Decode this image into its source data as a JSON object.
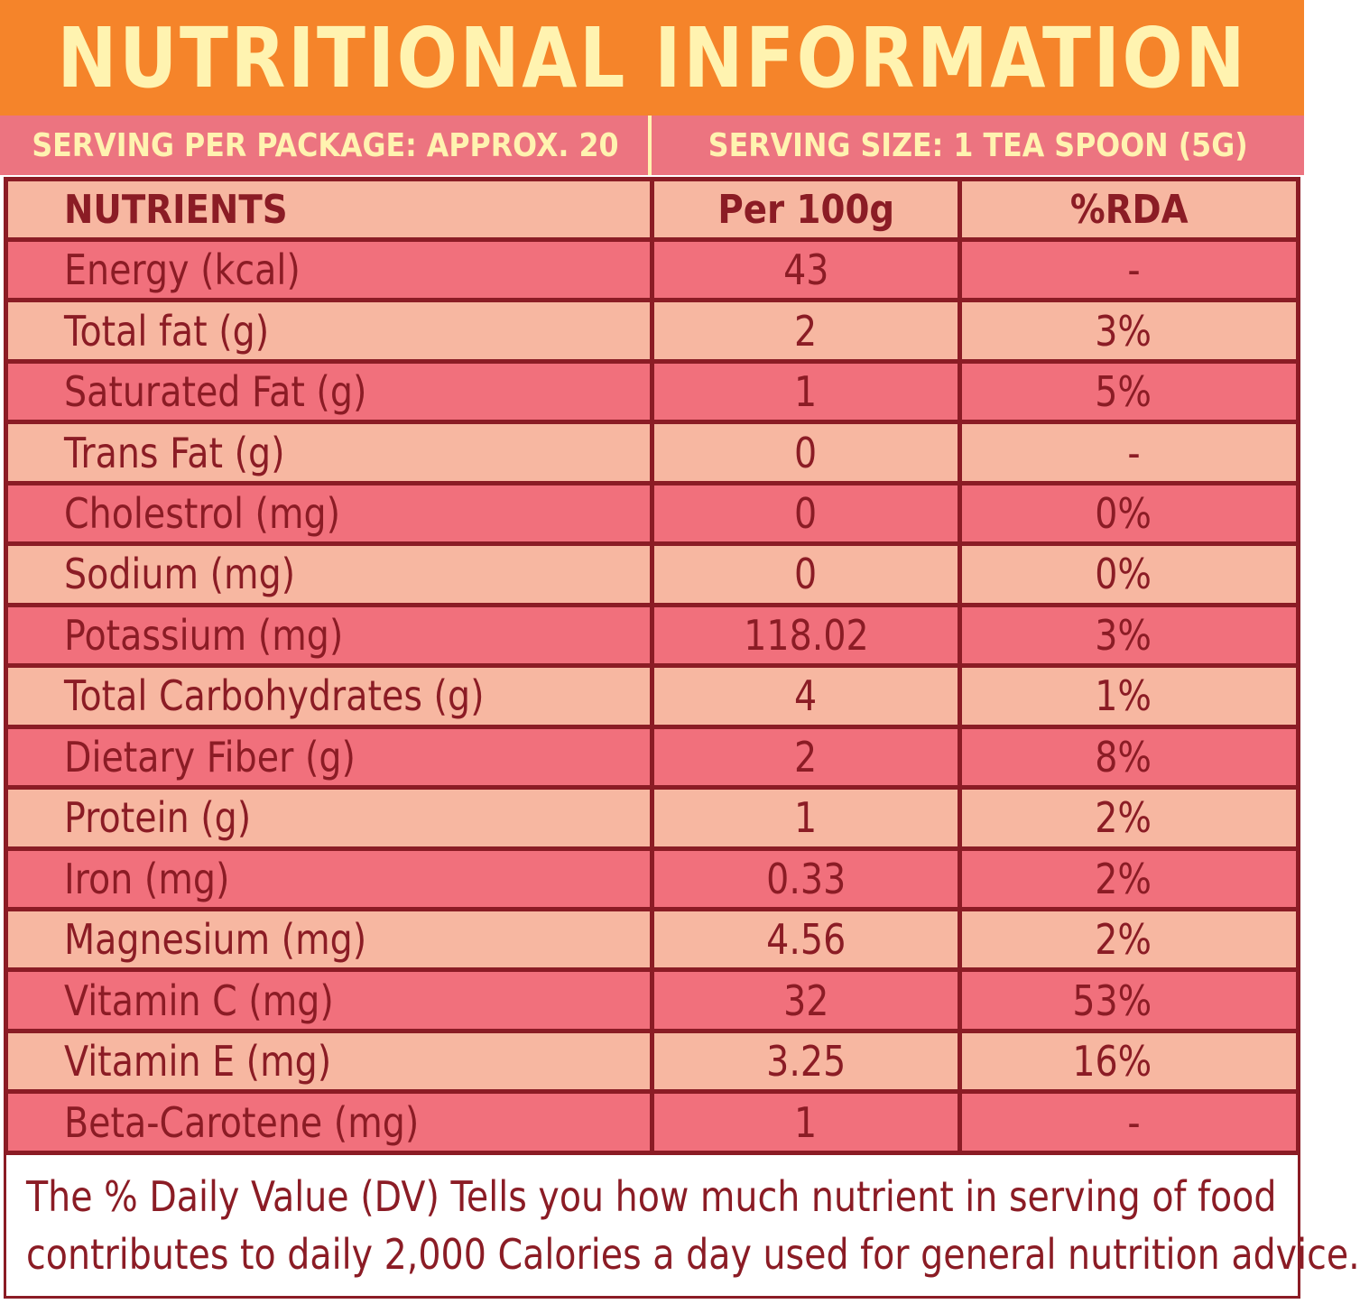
{
  "title": "NUTRITIONAL INFORMATION",
  "serving": {
    "per_package": "SERVING PER PACKAGE: APPROX. 20",
    "size": "SERVING SIZE: 1 TEA SPOON (5G)"
  },
  "table": {
    "headers": {
      "nutrient": "NUTRIENTS",
      "per100g": "Per 100g",
      "rda": "%RDA"
    },
    "rows": [
      {
        "nutrient": "Energy (kcal)",
        "per100g": "43",
        "rda": "-"
      },
      {
        "nutrient": "Total fat (g)",
        "per100g": "2",
        "rda": "3%"
      },
      {
        "nutrient": "Saturated Fat (g)",
        "per100g": "1",
        "rda": "5%"
      },
      {
        "nutrient": "Trans Fat (g)",
        "per100g": "0",
        "rda": "-"
      },
      {
        "nutrient": "Cholestrol (mg)",
        "per100g": "0",
        "rda": "0%"
      },
      {
        "nutrient": "Sodium (mg)",
        "per100g": "0",
        "rda": "0%"
      },
      {
        "nutrient": "Potassium  (mg)",
        "per100g": "118.02",
        "rda": "3%"
      },
      {
        "nutrient": "Total Carbohydrates (g)",
        "per100g": "4",
        "rda": "1%"
      },
      {
        "nutrient": "Dietary Fiber (g)",
        "per100g": "2",
        "rda": "8%"
      },
      {
        "nutrient": "Protein (g)",
        "per100g": "1",
        "rda": "2%"
      },
      {
        "nutrient": "Iron (mg)",
        "per100g": "0.33",
        "rda": "2%"
      },
      {
        "nutrient": "Magnesium (mg)",
        "per100g": "4.56",
        "rda": "2%"
      },
      {
        "nutrient": "Vitamin C (mg)",
        "per100g": "32",
        "rda": "53%"
      },
      {
        "nutrient": "Vitamin E (mg)",
        "per100g": "3.25",
        "rda": "16%"
      },
      {
        "nutrient": "Beta-Carotene (mg)",
        "per100g": "1",
        "rda": "-"
      }
    ]
  },
  "footnote": {
    "line1": "The % Daily Value (DV) Tells you how much nutrient in serving of food",
    "line2": "contributes to daily 2,000 Calories a day used for general nutrition advice."
  },
  "colors": {
    "title_bg": "#f5842a",
    "title_text": "#fff3b0",
    "serving_bg": "#ec7480",
    "row_pink": "#f1707c",
    "row_peach": "#f7b7a1",
    "text_dark": "#8b1c25"
  }
}
